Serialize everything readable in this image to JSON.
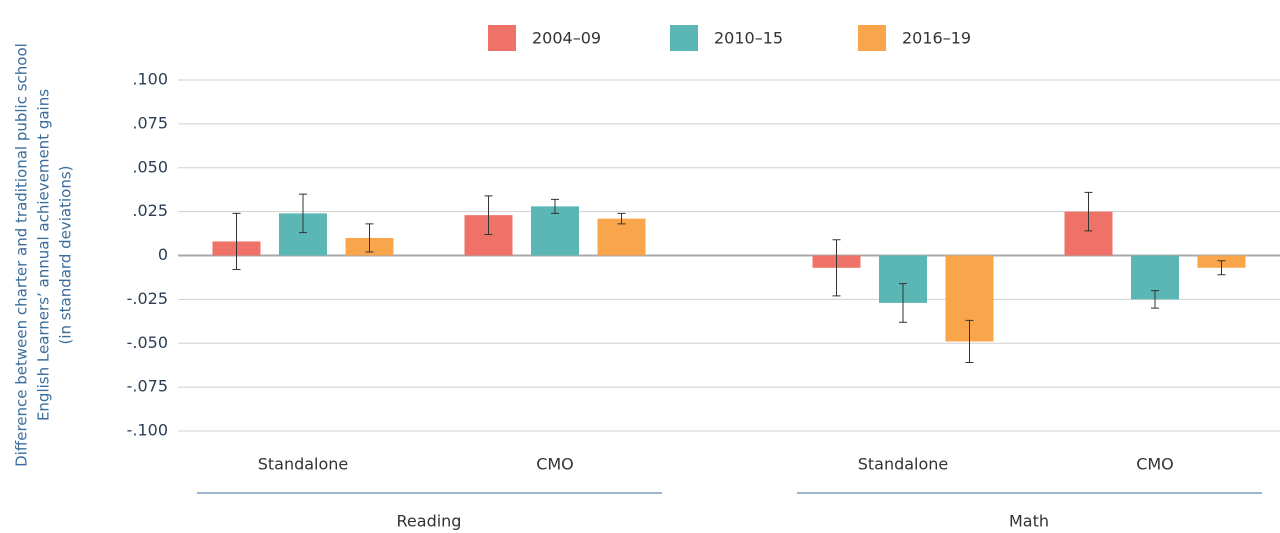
{
  "chart_data": {
    "type": "bar",
    "ylabel": [
      "Difference between charter and traditional public school",
      "English Learners’ annual achievement gains",
      "(in standard deviations)"
    ],
    "groups": [
      {
        "name": "Reading",
        "categories": [
          "Standalone",
          "CMO"
        ]
      },
      {
        "name": "Math",
        "categories": [
          "Standalone",
          "CMO"
        ]
      }
    ],
    "series": [
      {
        "name": "2004–09",
        "color": "#ef7268",
        "values": [
          0.008,
          0.023,
          -0.007,
          0.025
        ],
        "errors": [
          0.016,
          0.011,
          0.016,
          0.011
        ]
      },
      {
        "name": "2010–15",
        "color": "#5ab7b6",
        "values": [
          0.024,
          0.028,
          -0.027,
          -0.025
        ],
        "errors": [
          0.011,
          0.004,
          0.011,
          0.005
        ]
      },
      {
        "name": "2016–19",
        "color": "#f9a54b",
        "values": [
          0.01,
          0.021,
          -0.049,
          -0.007
        ],
        "errors": [
          0.008,
          0.003,
          0.012,
          0.004
        ]
      }
    ],
    "ylim": [
      -0.1,
      0.1
    ],
    "yticks": [
      {
        "value": -0.1,
        "label": "-.100"
      },
      {
        "value": -0.075,
        "label": "-.075"
      },
      {
        "value": -0.05,
        "label": "-.050"
      },
      {
        "value": -0.025,
        "label": "-.025"
      },
      0,
      {
        "value": 0.025,
        "label": ".025"
      },
      {
        "value": 0.05,
        "label": ".050"
      },
      {
        "value": 0.075,
        "label": ".075"
      },
      {
        "value": 0.1,
        "label": ".100"
      }
    ],
    "grid": true,
    "legend": "top"
  }
}
